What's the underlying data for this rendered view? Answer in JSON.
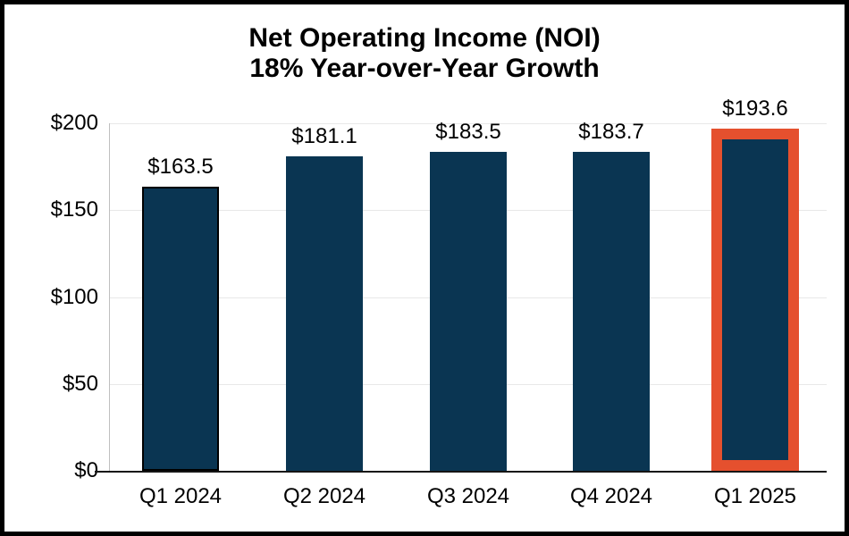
{
  "chart_data": {
    "type": "bar",
    "title": "Net Operating Income (NOI)",
    "subtitle": "18% Year-over-Year Growth",
    "categories": [
      "Q1 2024",
      "Q2 2024",
      "Q3 2024",
      "Q4 2024",
      "Q1 2025"
    ],
    "values": [
      163.5,
      181.1,
      183.5,
      183.7,
      193.6
    ],
    "value_labels": [
      "$163.5",
      "$181.1",
      "$183.5",
      "$183.7",
      "$193.6"
    ],
    "ylabel": "",
    "xlabel": "",
    "ylim": [
      0,
      200
    ],
    "yticks": [
      {
        "value": 0,
        "label": "$0"
      },
      {
        "value": 50,
        "label": "$50"
      },
      {
        "value": 100,
        "label": "$100"
      },
      {
        "value": 150,
        "label": "$150"
      },
      {
        "value": 200,
        "label": "$200"
      }
    ],
    "grid": true,
    "legend": "none",
    "bar_color": "#0a3552",
    "first_bar_outline_color": "#000000",
    "highlight_index": 4,
    "highlight_color": "#e5502e"
  }
}
